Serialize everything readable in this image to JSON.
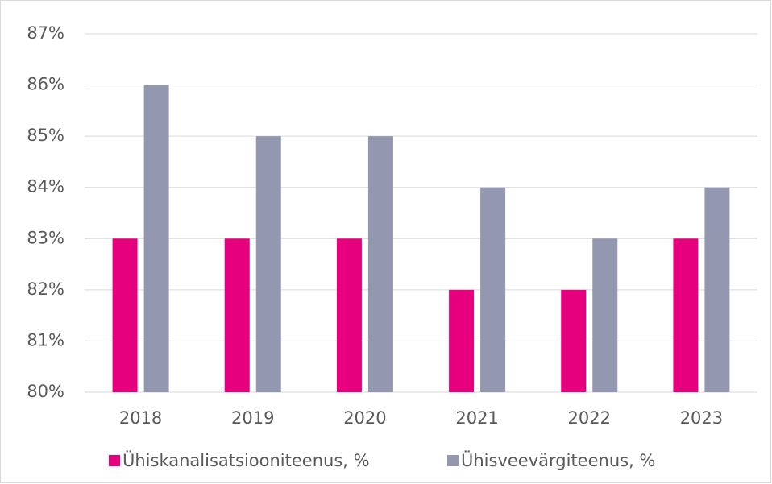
{
  "chart_data": {
    "type": "bar",
    "categories": [
      "2018",
      "2019",
      "2020",
      "2021",
      "2022",
      "2023"
    ],
    "series": [
      {
        "name": "Ühiskanalisatsiooniteenus, %",
        "color": "#e6007e",
        "values": [
          83,
          83,
          83,
          82,
          82,
          83
        ]
      },
      {
        "name": "Ühisveevärgiteenus, %",
        "color": "#9497b0",
        "values": [
          86,
          85,
          85,
          84,
          83,
          84
        ]
      }
    ],
    "ylim": [
      80,
      87
    ],
    "yticks": [
      {
        "value": 80,
        "label": "80%"
      },
      {
        "value": 81,
        "label": "81%"
      },
      {
        "value": 82,
        "label": "82%"
      },
      {
        "value": 83,
        "label": "83%"
      },
      {
        "value": 84,
        "label": "84%"
      },
      {
        "value": 85,
        "label": "85%"
      },
      {
        "value": 86,
        "label": "86%"
      },
      {
        "value": 87,
        "label": "87%"
      }
    ],
    "grid": true,
    "legend": "bottom"
  }
}
